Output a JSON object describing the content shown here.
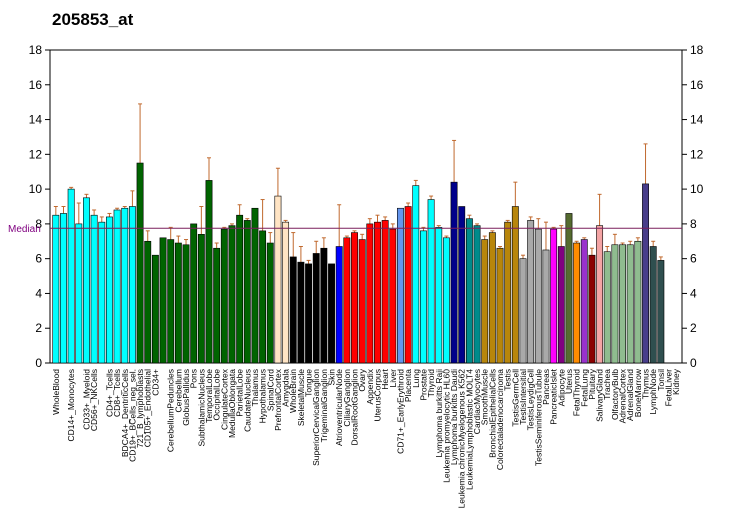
{
  "chart_data": {
    "type": "bar",
    "title": "205853_at",
    "median_label": "Median",
    "median_value": 7.75,
    "ylim": [
      0,
      18
    ],
    "yticks": [
      "0",
      "2",
      "4",
      "6",
      "8",
      "10",
      "12",
      "14",
      "16",
      "18"
    ],
    "grid": false,
    "colors": {
      "median_line": "#7a1f5c",
      "median_text": "#800080",
      "error_bar": "#c0692e"
    },
    "categories": [
      {
        "label": "WholeBlood",
        "show": true,
        "value": 8.5,
        "err": 9.0,
        "color": "#00ffff"
      },
      {
        "label": "",
        "show": false,
        "value": 8.6,
        "err": 9.0,
        "color": "#00ffff"
      },
      {
        "label": "CD14+_Monocytes",
        "show": true,
        "value": 10.0,
        "err": 10.1,
        "color": "#00ffff"
      },
      {
        "label": "",
        "show": false,
        "value": 8.0,
        "err": 9.2,
        "color": "#00ffff"
      },
      {
        "label": "CD33+_Myeloid",
        "show": true,
        "value": 9.5,
        "err": 9.7,
        "color": "#00ffff"
      },
      {
        "label": "CD56+_NKCells",
        "show": true,
        "value": 8.5,
        "err": 8.8,
        "color": "#00ffff"
      },
      {
        "label": "",
        "show": false,
        "value": 8.1,
        "err": 8.4,
        "color": "#00ffff"
      },
      {
        "label": "CD4+_Tcells",
        "show": true,
        "value": 8.4,
        "err": 8.6,
        "color": "#00ffff"
      },
      {
        "label": "CD8+_Tcells",
        "show": true,
        "value": 8.8,
        "err": 8.9,
        "color": "#00ffff"
      },
      {
        "label": "BDCA4+_DentriticCells",
        "show": true,
        "value": 8.9,
        "err": 9.0,
        "color": "#00ffff"
      },
      {
        "label": "CD19+_BCells_neg_sel.",
        "show": true,
        "value": 9.0,
        "err": 9.9,
        "color": "#00ffff"
      },
      {
        "label": "721_B_lymphoblasts",
        "show": true,
        "value": 11.5,
        "err": 14.9,
        "color": "#006400"
      },
      {
        "label": "CD105+_Endothelial",
        "show": true,
        "value": 7.0,
        "err": 7.6,
        "color": "#006400"
      },
      {
        "label": "CD34+",
        "show": true,
        "value": 6.2,
        "err": 6.2,
        "color": "#006400"
      },
      {
        "label": "",
        "show": false,
        "value": 7.2,
        "err": 7.2,
        "color": "#006400"
      },
      {
        "label": "CerebellumPeduncles",
        "show": true,
        "value": 7.1,
        "err": 7.8,
        "color": "#006400"
      },
      {
        "label": "Cerebellum",
        "show": true,
        "value": 6.9,
        "err": 7.3,
        "color": "#006400"
      },
      {
        "label": "GlobusPallidus",
        "show": true,
        "value": 6.8,
        "err": 7.1,
        "color": "#006400"
      },
      {
        "label": "Pons",
        "show": true,
        "value": 8.0,
        "err": 8.0,
        "color": "#006400"
      },
      {
        "label": "SubthalamicNucleus",
        "show": true,
        "value": 7.4,
        "err": 9.0,
        "color": "#006400"
      },
      {
        "label": "TemporalLobe",
        "show": true,
        "value": 10.5,
        "err": 11.8,
        "color": "#006400"
      },
      {
        "label": "OccipitalLobe",
        "show": true,
        "value": 6.6,
        "err": 6.9,
        "color": "#006400"
      },
      {
        "label": "CingulateCortex",
        "show": true,
        "value": 7.7,
        "err": 7.8,
        "color": "#006400"
      },
      {
        "label": "MedullaOblongata",
        "show": true,
        "value": 7.9,
        "err": 8.0,
        "color": "#006400"
      },
      {
        "label": "ParietalLobe",
        "show": true,
        "value": 8.5,
        "err": 9.1,
        "color": "#006400"
      },
      {
        "label": "CaudateNucleus",
        "show": true,
        "value": 8.2,
        "err": 8.3,
        "color": "#006400"
      },
      {
        "label": "Thalamus",
        "show": true,
        "value": 8.9,
        "err": 8.9,
        "color": "#006400"
      },
      {
        "label": "Hypothalamus",
        "show": true,
        "value": 7.6,
        "err": 9.4,
        "color": "#006400"
      },
      {
        "label": "SpinalCord",
        "show": true,
        "value": 6.9,
        "err": 7.5,
        "color": "#006400"
      },
      {
        "label": "PrefrontalCortex",
        "show": true,
        "value": 9.6,
        "err": 11.2,
        "color": "#ffe4c4"
      },
      {
        "label": "Amygdala",
        "show": true,
        "value": 8.1,
        "err": 8.2,
        "color": "#ffe4c4"
      },
      {
        "label": "WholeBrain",
        "show": true,
        "value": 6.1,
        "err": 7.5,
        "color": "#000000"
      },
      {
        "label": "SkeletalMuscle",
        "show": true,
        "value": 5.8,
        "err": 6.7,
        "color": "#000000"
      },
      {
        "label": "Tongue",
        "show": true,
        "value": 5.7,
        "err": 5.9,
        "color": "#000000"
      },
      {
        "label": "SuperiorCervicalGanglion",
        "show": true,
        "value": 6.3,
        "err": 7.0,
        "color": "#000000"
      },
      {
        "label": "TrigeminalGanglion",
        "show": true,
        "value": 6.6,
        "err": 7.2,
        "color": "#000000"
      },
      {
        "label": "Skin",
        "show": true,
        "value": 5.7,
        "err": 5.7,
        "color": "#000000"
      },
      {
        "label": "AtrioventricularNode",
        "show": true,
        "value": 6.7,
        "err": 9.1,
        "color": "#0000ff"
      },
      {
        "label": "CiliaryGanglion",
        "show": true,
        "value": 7.2,
        "err": 7.3,
        "color": "#ff0000"
      },
      {
        "label": "DorsalRootGanglion",
        "show": true,
        "value": 7.5,
        "err": 7.6,
        "color": "#ff0000"
      },
      {
        "label": "Ovary",
        "show": true,
        "value": 7.1,
        "err": 7.4,
        "color": "#ff0000"
      },
      {
        "label": "Appendix",
        "show": true,
        "value": 8.0,
        "err": 8.3,
        "color": "#ff0000"
      },
      {
        "label": "UterusCorpus",
        "show": true,
        "value": 8.1,
        "err": 8.5,
        "color": "#ff0000"
      },
      {
        "label": "Heart",
        "show": true,
        "value": 8.2,
        "err": 8.4,
        "color": "#ff0000"
      },
      {
        "label": "Liver",
        "show": true,
        "value": 7.7,
        "err": 8.0,
        "color": "#ff0000"
      },
      {
        "label": "CD71+_EarlyErythroid",
        "show": true,
        "value": 8.9,
        "err": 8.9,
        "color": "#6495ed"
      },
      {
        "label": "Placenta",
        "show": true,
        "value": 9.0,
        "err": 9.2,
        "color": "#ff0000"
      },
      {
        "label": "Lung",
        "show": true,
        "value": 10.2,
        "err": 10.5,
        "color": "#00ffff"
      },
      {
        "label": "Prostate",
        "show": true,
        "value": 7.6,
        "err": 7.8,
        "color": "#00ffff"
      },
      {
        "label": "Thyroid",
        "show": true,
        "value": 9.4,
        "err": 9.6,
        "color": "#00ffff"
      },
      {
        "label": "Lymphoma burkitts Raji",
        "show": true,
        "value": 7.8,
        "err": 7.9,
        "color": "#00ffff"
      },
      {
        "label": "Leukemia promyelocytic HL60",
        "show": true,
        "value": 7.2,
        "err": 7.3,
        "color": "#00ffff"
      },
      {
        "label": "Lymphoma burkitts Daudi",
        "show": true,
        "value": 10.4,
        "err": 12.8,
        "color": "#00008b"
      },
      {
        "label": "Leukemia chronicMyelogenous K562",
        "show": true,
        "value": 9.0,
        "err": 9.0,
        "color": "#00008b"
      },
      {
        "label": "LeukemiaLymphoblastic MOLT4",
        "show": true,
        "value": 8.3,
        "err": 8.5,
        "color": "#008b8b"
      },
      {
        "label": "CardiacMyocytes",
        "show": true,
        "value": 7.9,
        "err": 8.0,
        "color": "#008b8b"
      },
      {
        "label": "SmoothMuscle",
        "show": true,
        "value": 7.1,
        "err": 7.3,
        "color": "#b8860b"
      },
      {
        "label": "BronchialEpithelialCells",
        "show": true,
        "value": 7.5,
        "err": 7.6,
        "color": "#b8860b"
      },
      {
        "label": "Colorectaladenocarcinoma",
        "show": true,
        "value": 6.6,
        "err": 6.7,
        "color": "#b8860b"
      },
      {
        "label": "Testis",
        "show": true,
        "value": 8.1,
        "err": 8.2,
        "color": "#b8860b"
      },
      {
        "label": "TestisGermCell",
        "show": true,
        "value": 9.0,
        "err": 10.4,
        "color": "#b8860b"
      },
      {
        "label": "TestisIntersitial",
        "show": true,
        "value": 6.0,
        "err": 6.2,
        "color": "#a9a9a9"
      },
      {
        "label": "TestisLeydigCell",
        "show": true,
        "value": 8.2,
        "err": 8.4,
        "color": "#a9a9a9"
      },
      {
        "label": "TestisSeminiferousTubule",
        "show": true,
        "value": 7.7,
        "err": 8.3,
        "color": "#a9a9a9"
      },
      {
        "label": "Pancreas",
        "show": true,
        "value": 6.5,
        "err": 8.1,
        "color": "#a9a9a9"
      },
      {
        "label": "PancreaticIslet",
        "show": true,
        "value": 7.7,
        "err": 7.8,
        "color": "#ff00ff"
      },
      {
        "label": "Adipocyte",
        "show": true,
        "value": 6.7,
        "err": 7.9,
        "color": "#800080"
      },
      {
        "label": "Uterus",
        "show": true,
        "value": 8.6,
        "err": 8.6,
        "color": "#556b2f"
      },
      {
        "label": "FetalThyroid",
        "show": true,
        "value": 6.9,
        "err": 7.0,
        "color": "#ff8c00"
      },
      {
        "label": "FetalLung",
        "show": true,
        "value": 7.1,
        "err": 7.2,
        "color": "#9932cc"
      },
      {
        "label": "Pituitary",
        "show": true,
        "value": 6.2,
        "err": 6.6,
        "color": "#8b0000"
      },
      {
        "label": "SalivaryGland",
        "show": true,
        "value": 7.9,
        "err": 9.7,
        "color": "#f4a4a4"
      },
      {
        "label": "Trachea",
        "show": true,
        "value": 6.4,
        "err": 6.7,
        "color": "#8fbc8f"
      },
      {
        "label": "OlfactoryBulb",
        "show": true,
        "value": 6.8,
        "err": 7.4,
        "color": "#8fbc8f"
      },
      {
        "label": "AdrenalCortex",
        "show": true,
        "value": 6.8,
        "err": 6.9,
        "color": "#8fbc8f"
      },
      {
        "label": "AdrenalGland",
        "show": true,
        "value": 6.8,
        "err": 7.0,
        "color": "#8fbc8f"
      },
      {
        "label": "BoneMarrow",
        "show": true,
        "value": 7.0,
        "err": 7.2,
        "color": "#8fbc8f"
      },
      {
        "label": "Thymus",
        "show": true,
        "value": 10.3,
        "err": 12.6,
        "color": "#483d8b"
      },
      {
        "label": "LymphNode",
        "show": true,
        "value": 6.7,
        "err": 7.0,
        "color": "#2f4f4f"
      },
      {
        "label": "Tonsil",
        "show": true,
        "value": 5.9,
        "err": 6.1,
        "color": "#2f4f4f"
      },
      {
        "label": "FetalLiver",
        "show": true,
        "value": 0,
        "err": 0,
        "color": "#2f4f4f"
      },
      {
        "label": "Kidney",
        "show": true,
        "value": 0,
        "err": 0,
        "color": "#2f4f4f"
      }
    ]
  }
}
